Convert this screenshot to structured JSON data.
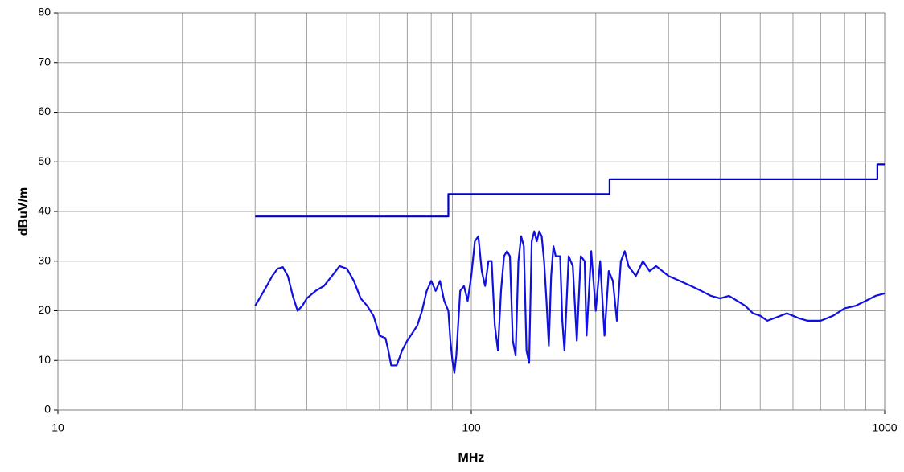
{
  "chart_data": {
    "type": "line",
    "xlabel": "MHz",
    "ylabel": "dBuV/m",
    "xscale": "log",
    "xlim": [
      10,
      1000
    ],
    "xticks": [
      10,
      100,
      1000
    ],
    "xminorticks": [
      20,
      30,
      40,
      50,
      60,
      70,
      80,
      90,
      200,
      300,
      400,
      500,
      600,
      700,
      800,
      900
    ],
    "ylim": [
      0,
      80
    ],
    "yticks": [
      0,
      10,
      20,
      30,
      40,
      50,
      60,
      70,
      80
    ],
    "grid": true,
    "series": [
      {
        "color": "#0000c8",
        "x": [
          30,
          88,
          88,
          216,
          216,
          960,
          960,
          1000
        ],
        "values": [
          39,
          39,
          43.5,
          43.5,
          46.5,
          46.5,
          49.5,
          49.5
        ]
      },
      {
        "color": "#1010e0",
        "x": [
          30,
          31,
          32,
          33,
          34,
          35,
          36,
          37,
          38,
          39,
          40,
          42,
          44,
          46,
          48,
          50,
          52,
          54,
          56,
          58,
          60,
          62,
          63,
          64,
          66,
          68,
          70,
          72,
          74,
          76,
          78,
          80,
          82,
          84,
          86,
          88,
          89,
          90,
          91,
          92,
          94,
          96,
          98,
          100,
          102,
          104,
          106,
          108,
          110,
          112,
          114,
          116,
          118,
          120,
          122,
          124,
          126,
          128,
          130,
          132,
          134,
          136,
          138,
          140,
          142,
          144,
          146,
          148,
          150,
          152,
          154,
          156,
          158,
          160,
          164,
          166,
          168,
          172,
          176,
          180,
          184,
          188,
          190,
          195,
          200,
          205,
          210,
          215,
          220,
          225,
          230,
          235,
          240,
          250,
          260,
          270,
          280,
          300,
          320,
          340,
          360,
          380,
          400,
          420,
          440,
          460,
          480,
          500,
          520,
          540,
          560,
          580,
          600,
          620,
          650,
          700,
          750,
          800,
          850,
          900,
          950,
          1000
        ],
        "values": [
          21,
          23,
          25,
          27,
          28.5,
          28.8,
          27,
          23,
          20,
          21,
          22.5,
          24,
          25,
          27,
          29,
          28.5,
          26,
          22.5,
          21,
          19,
          15,
          14.5,
          12,
          9,
          9,
          12,
          14,
          15.5,
          17,
          20,
          24,
          26,
          24,
          26,
          22,
          20,
          14,
          10,
          7.5,
          11,
          24,
          25,
          22,
          27,
          34,
          35,
          28,
          25,
          30,
          30,
          17,
          12,
          24,
          31,
          32,
          31,
          14,
          11,
          30,
          35,
          33,
          12,
          9.5,
          34,
          36,
          34,
          36,
          35,
          30,
          22,
          13,
          27,
          33,
          31,
          31,
          18,
          12,
          31,
          29,
          14,
          31,
          30,
          15,
          32,
          20,
          30,
          15,
          28,
          26,
          18,
          30,
          32,
          29,
          27,
          30,
          28,
          29,
          27,
          26,
          25,
          24,
          23,
          22.5,
          23,
          22,
          21,
          19.5,
          19,
          18,
          18.5,
          19,
          19.5,
          19,
          18.5,
          18,
          18,
          19,
          20.5,
          21,
          22,
          23,
          23.5
        ]
      }
    ]
  }
}
